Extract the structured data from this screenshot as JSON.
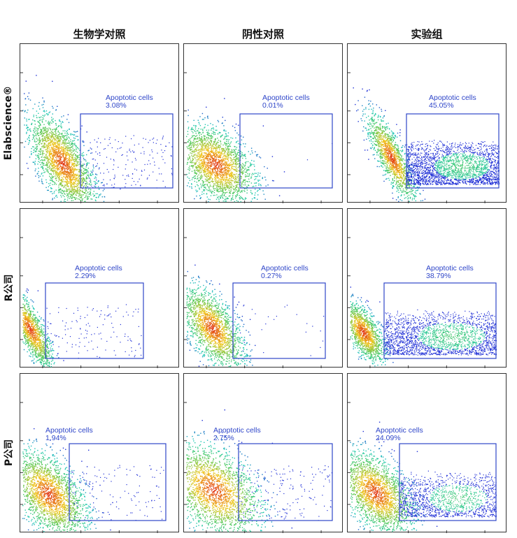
{
  "chart_data": {
    "type": "scatter",
    "subtype": "flow-cytometry-density-grid",
    "columns": [
      "生物学对照",
      "阴性对照",
      "实验组"
    ],
    "rows": [
      "Elabscience®",
      "R公司",
      "P公司"
    ],
    "gate_name": "Apoptotic cells",
    "panels": [
      {
        "row": 0,
        "col": 0,
        "gate_label": "Apoptotic cells",
        "percent": "3.08%",
        "value": 3.08
      },
      {
        "row": 0,
        "col": 1,
        "gate_label": "Apoptotic cells",
        "percent": "0.01%",
        "value": 0.01
      },
      {
        "row": 0,
        "col": 2,
        "gate_label": "Apoptotic cells",
        "percent": "45.05%",
        "value": 45.05
      },
      {
        "row": 1,
        "col": 0,
        "gate_label": "Apoptotic cells",
        "percent": "2.29%",
        "value": 2.29
      },
      {
        "row": 1,
        "col": 1,
        "gate_label": "Apoptotic cells",
        "percent": "0.27%",
        "value": 0.27
      },
      {
        "row": 1,
        "col": 2,
        "gate_label": "Apoptotic cells",
        "percent": "38.79%",
        "value": 38.79
      },
      {
        "row": 2,
        "col": 0,
        "gate_label": "Apoptotic cells",
        "percent": "1.94%",
        "value": 1.94
      },
      {
        "row": 2,
        "col": 1,
        "gate_label": "Apoptotic cells",
        "percent": "2.75%",
        "value": 2.75
      },
      {
        "row": 2,
        "col": 2,
        "gate_label": "Apoptotic cells",
        "percent": "24.09%",
        "value": 24.09
      }
    ],
    "colors": {
      "gate": "#2f46c9",
      "density_low": "#1f2fd6",
      "density_mid": "#19c8b4",
      "density_high": "#e12a14"
    },
    "grid": false,
    "legend": "none"
  }
}
